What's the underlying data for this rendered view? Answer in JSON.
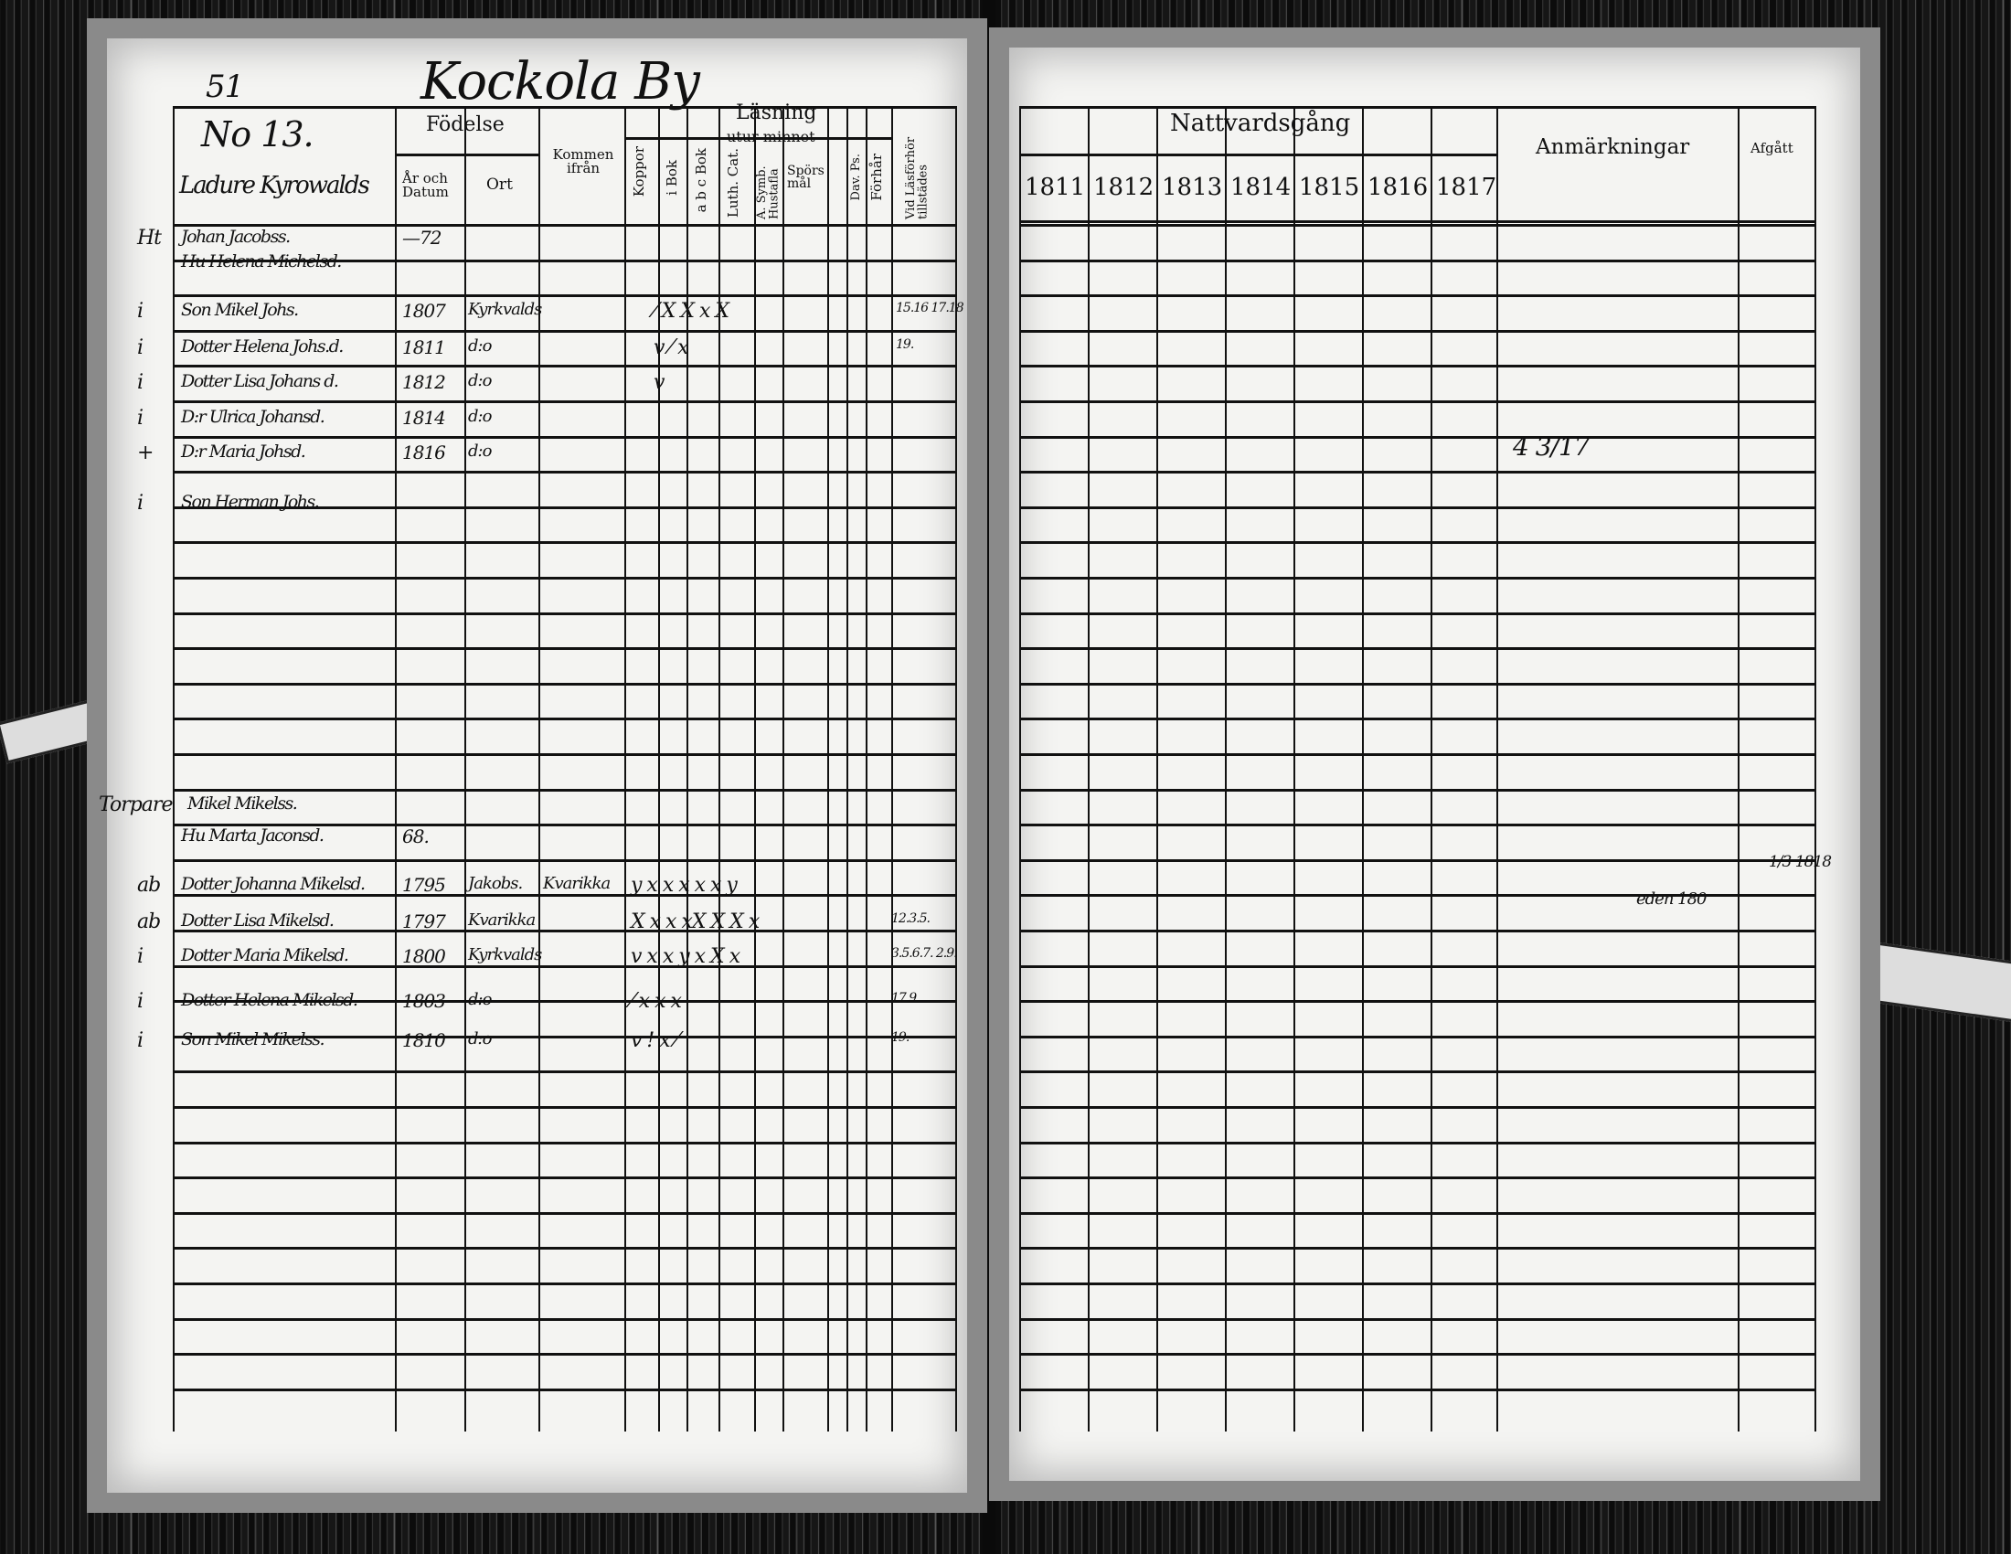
{
  "left_page": {
    "page_number": "51",
    "village_title": "Kockola By",
    "household_number": "No 13.",
    "homestead": "Ladure Kyrowalds",
    "headers": {
      "fodelse": "Födelse",
      "ar_och_datum": "År och Datum",
      "ort": "Ort",
      "kommen_ifran": "Kommen ifrån",
      "koppor": "Koppor",
      "lasning": "Läsning",
      "utur_minnet": "utur minnet",
      "i_bok": "i Bok",
      "abc_bok": "a b c Bok",
      "luth_cat": "Luth. Cat.",
      "a_symb": "A. Symb. Hustafla",
      "sporsmal": "Spörsmål",
      "dav_ps": "Dav. Ps.",
      "forhar": "Förhår",
      "lasforhor": "Vid Läsförhör tillstädes"
    },
    "family1": [
      {
        "mark": "Ht",
        "name": "Johan Jacobss.",
        "date": "—72",
        "place": "",
        "marks": ""
      },
      {
        "mark": "",
        "name": "Hu Helena Michelsd.",
        "date": "",
        "place": "",
        "marks": ""
      },
      {
        "mark": "i",
        "name": "Son Mikel Johs.",
        "date": "1807",
        "place": "Kyrkvalds",
        "marks": "⁄  X  X  x  X",
        "notes": "15.16 17.18"
      },
      {
        "mark": "i",
        "name": "Dotter Helena Johs.d.",
        "date": "1811",
        "place": "d:o",
        "marks": "v  ⁄  x",
        "notes": "19."
      },
      {
        "mark": "i",
        "name": "Dotter Lisa Johans d.",
        "date": "1812",
        "place": "d:o",
        "marks": "v",
        "notes": ""
      },
      {
        "mark": "i",
        "name": "D:r Ulrica Johansd.",
        "date": "1814",
        "place": "d:o",
        "marks": "",
        "notes": ""
      },
      {
        "mark": "+",
        "name": "D:r Maria Johsd.",
        "date": "1816",
        "place": "d:o",
        "marks": "",
        "notes": ""
      },
      {
        "mark": "i",
        "name": "Son Herman Johs.",
        "date": "",
        "place": "",
        "marks": "",
        "notes": ""
      }
    ],
    "family2": [
      {
        "mark": "Torpare",
        "name": "Mikel Mikelss.",
        "date": "",
        "place": "",
        "marks": "",
        "notes": ""
      },
      {
        "mark": "",
        "name": "Hu Marta Jaconsd.",
        "date": "68.",
        "place": "",
        "marks": "",
        "notes": ""
      },
      {
        "mark": "ab",
        "name": "Dotter Johanna Mikelsd.",
        "date": "1795",
        "place": "Jakobs.",
        "from": "Kvarikka",
        "marks": "y  x  x  x  x  x  y",
        "notes": ""
      },
      {
        "mark": "ab",
        "name": "Dotter Lisa Mikelsd.",
        "date": "1797",
        "place": "Kvarikka",
        "marks": "X  x  x  xX  X  X  x",
        "notes": "12.3.5."
      },
      {
        "mark": "i",
        "name": "Dotter Maria Mikelsd.",
        "date": "1800",
        "place": "Kyrkvalds",
        "marks": "v  x  x  y  x  X  x",
        "notes": "3.5.6.7. 2.9."
      },
      {
        "mark": "i",
        "name": "Dotter Helena Mikelsd.",
        "date": "1803",
        "place": "d:o",
        "marks": "⁄  x  x  x",
        "notes": "17.9."
      },
      {
        "mark": "i",
        "name": "Son Mikel Mikelss.",
        "date": "1810",
        "place": "d:o",
        "marks": "v  !  x  ⁄",
        "notes": "19."
      }
    ]
  },
  "right_page": {
    "headers": {
      "nattvardsgang": "Nattvardsgång",
      "years": [
        "1811",
        "1812",
        "1813",
        "1814",
        "1815",
        "1816",
        "1817"
      ],
      "anmarkningar": "Anmärkningar",
      "afgatt": "Afgått"
    },
    "annotations": {
      "remark_1": "4 3/17",
      "remark_2": "eden 180",
      "afgatt_1": "1/3 1818"
    }
  }
}
